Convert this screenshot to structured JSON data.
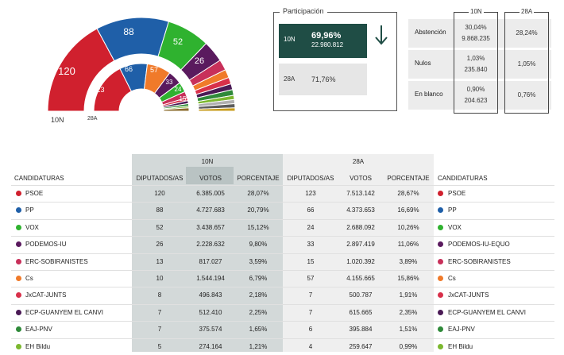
{
  "hemicycle": {
    "label_10n": "10N",
    "label_28a": "28A",
    "outer_values": [
      "120",
      "88",
      "52",
      "26"
    ],
    "inner_values": [
      "123",
      "66",
      "57",
      "33",
      "24",
      "15"
    ]
  },
  "participacion": {
    "title": "Participación",
    "n10_tag": "10N",
    "n10_pct": "69,96%",
    "n10_votes": "22.980.812",
    "a28_tag": "28A",
    "a28_pct": "71,76%"
  },
  "stats": {
    "col1_head": "10N",
    "col2_head": "28A",
    "rows": [
      {
        "label": "Abstención",
        "v1a": "30,04%",
        "v1b": "9.868.235",
        "v2": "28,24%"
      },
      {
        "label": "Nulos",
        "v1a": "1,03%",
        "v1b": "235.840",
        "v2": "1,05%"
      },
      {
        "label": "En blanco",
        "v1a": "0,90%",
        "v1b": "204.623",
        "v2": "0,76%"
      }
    ]
  },
  "table": {
    "group_10n": "10N",
    "group_28a": "28A",
    "col_candidaturas": "CANDIDATURAS",
    "col_diputados": "DIPUTADOS/AS",
    "col_votos": "VOTOS",
    "col_porcentaje": "PORCENTAJE",
    "rows": [
      {
        "name": "PSOE",
        "color": "#d0202e",
        "d10": "120",
        "v10": "6.385.005",
        "p10": "28,07%",
        "d28": "123",
        "v28": "7.513.142",
        "p28": "28,67%",
        "name28": "PSOE",
        "color28": "#d0202e"
      },
      {
        "name": "PP",
        "color": "#1f5fa8",
        "d10": "88",
        "v10": "4.727.683",
        "p10": "20,79%",
        "d28": "66",
        "v28": "4.373.653",
        "p28": "16,69%",
        "name28": "PP",
        "color28": "#1f5fa8"
      },
      {
        "name": "VOX",
        "color": "#2fb22f",
        "d10": "52",
        "v10": "3.438.657",
        "p10": "15,12%",
        "d28": "24",
        "v28": "2.688.092",
        "p28": "10,26%",
        "name28": "VOX",
        "color28": "#2fb22f"
      },
      {
        "name": "PODEMOS-IU",
        "color": "#5a1a5e",
        "d10": "26",
        "v10": "2.228.632",
        "p10": "9,80%",
        "d28": "33",
        "v28": "2.897.419",
        "p28": "11,06%",
        "name28": "PODEMOS-IU-EQUO",
        "color28": "#5a1a5e"
      },
      {
        "name": "ERC-SOBIRANISTES",
        "color": "#c8305a",
        "d10": "13",
        "v10": "817.027",
        "p10": "3,59%",
        "d28": "15",
        "v28": "1.020.392",
        "p28": "3,89%",
        "name28": "ERC-SOBIRANISTES",
        "color28": "#c8305a"
      },
      {
        "name": "Cs",
        "color": "#f07a2a",
        "d10": "10",
        "v10": "1.544.194",
        "p10": "6,79%",
        "d28": "57",
        "v28": "4.155.665",
        "p28": "15,86%",
        "name28": "Cs",
        "color28": "#f07a2a"
      },
      {
        "name": "JxCAT-JUNTS",
        "color": "#d8304a",
        "d10": "8",
        "v10": "496.843",
        "p10": "2,18%",
        "d28": "7",
        "v28": "500.787",
        "p28": "1,91%",
        "name28": "JxCAT-JUNTS",
        "color28": "#d8304a"
      },
      {
        "name": "ECP-GUANYEM EL CANVI",
        "color": "#4a1a55",
        "d10": "7",
        "v10": "512.410",
        "p10": "2,25%",
        "d28": "7",
        "v28": "615.665",
        "p28": "2,35%",
        "name28": "ECP-GUANYEM EL CANVI",
        "color28": "#4a1a55"
      },
      {
        "name": "EAJ-PNV",
        "color": "#2f8a3a",
        "d10": "7",
        "v10": "375.574",
        "p10": "1,65%",
        "d28": "6",
        "v28": "395.884",
        "p28": "1,51%",
        "name28": "EAJ-PNV",
        "color28": "#2f8a3a"
      },
      {
        "name": "EH Bildu",
        "color": "#7cb82f",
        "d10": "5",
        "v10": "274.164",
        "p10": "1,21%",
        "d28": "4",
        "v28": "259.647",
        "p28": "0,99%",
        "name28": "EH Bildu",
        "color28": "#7cb82f"
      }
    ]
  }
}
